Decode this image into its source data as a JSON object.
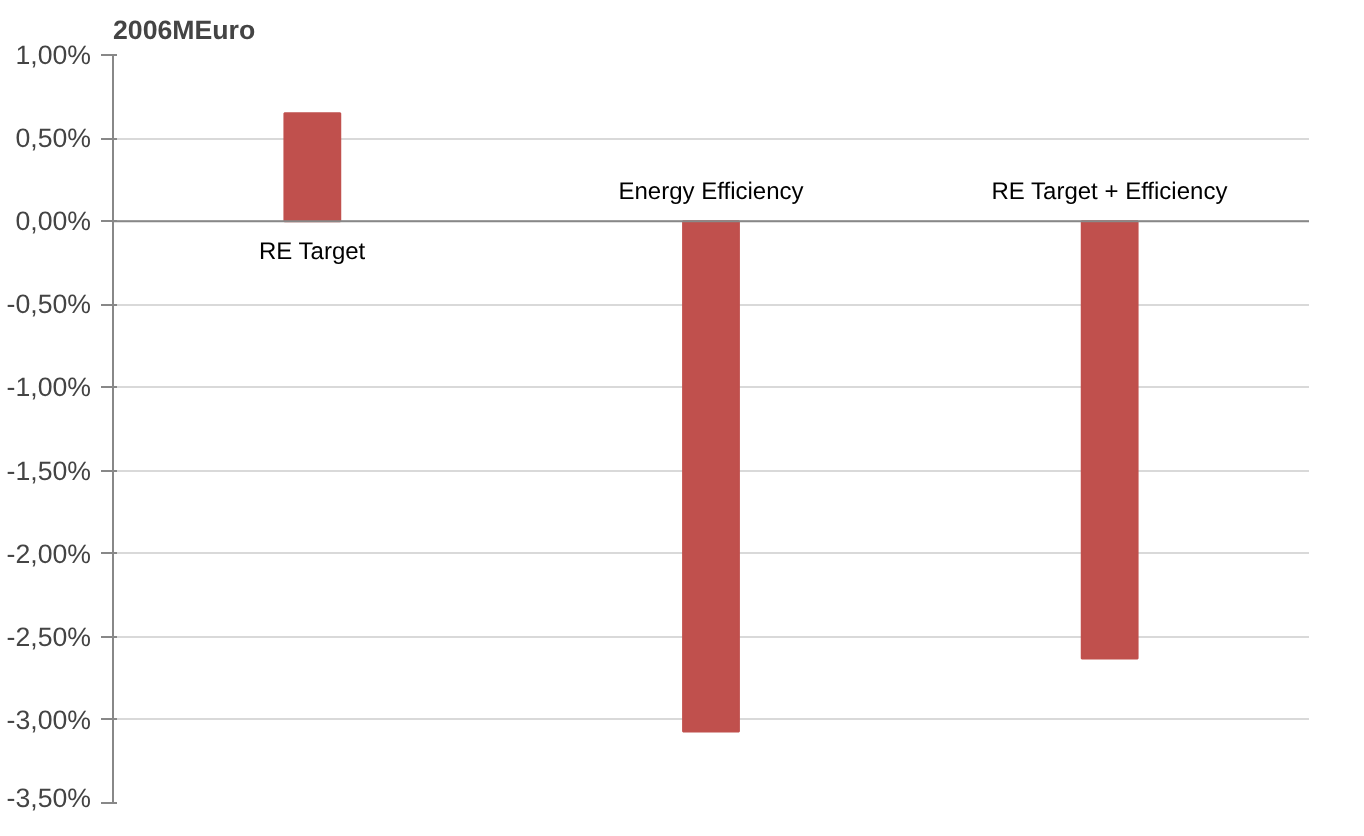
{
  "chart_data": {
    "type": "bar",
    "title": "2006MEuro",
    "categories": [
      "RE Target",
      "Energy Efficiency",
      "RE Target + Efficiency"
    ],
    "values": [
      0.65,
      -3.07,
      -2.63
    ],
    "color": "#c0504d",
    "ylim": [
      -3.5,
      1.0
    ],
    "yticks": [
      {
        "value": 1.0,
        "label": "1,00%"
      },
      {
        "value": 0.5,
        "label": "0,50%"
      },
      {
        "value": 0,
        "label": "0,00%"
      },
      {
        "value": -0.5,
        "label": "-0,50%"
      },
      {
        "value": -1.0,
        "label": "-1,00%"
      },
      {
        "value": -1.5,
        "label": "-1,50%"
      },
      {
        "value": -2.0,
        "label": "-2,00%"
      },
      {
        "value": -2.5,
        "label": "-2,50%"
      },
      {
        "value": -3.0,
        "label": "-3,00%"
      },
      {
        "value": -3.5,
        "label": "-3,50%"
      }
    ],
    "grid": "y"
  }
}
